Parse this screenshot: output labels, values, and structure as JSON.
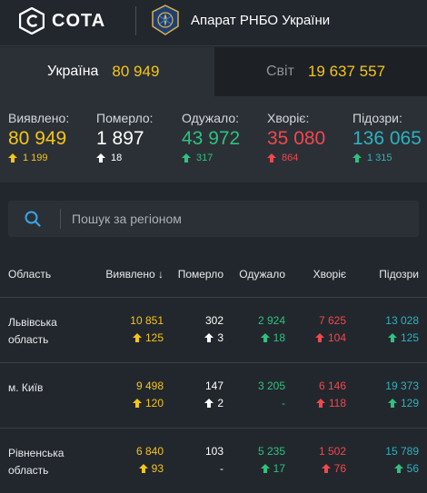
{
  "header": {
    "logo_text": "COTA",
    "org_name": "Апарат РНБО України"
  },
  "tabs": {
    "ukraine_label": "Україна",
    "ukraine_value": "80 949",
    "world_label": "Світ",
    "world_value": "19 637 557"
  },
  "stats": {
    "detected_label": "Виявлено:",
    "detected_value": "80 949",
    "detected_delta": "1 199",
    "died_label": "Померло:",
    "died_value": "1 897",
    "died_delta": "18",
    "recovered_label": "Одужало:",
    "recovered_value": "43 972",
    "recovered_delta": "317",
    "sick_label": "Хворіє:",
    "sick_value": "35 080",
    "sick_delta": "864",
    "suspected_label": "Підозри:",
    "suspected_value": "136 065",
    "suspected_delta": "1 315"
  },
  "search": {
    "placeholder": "Пошук за регіоном"
  },
  "table": {
    "headers": {
      "region": "Область",
      "detected": "Виявлено",
      "sort_arrow": "↓",
      "died": "Померло",
      "recovered": "Одужало",
      "sick": "Хворіє",
      "suspected": "Підозри"
    },
    "rows": [
      {
        "region_line1": "Львівська",
        "region_line2": "область",
        "detected": "10 851",
        "detected_delta": "125",
        "died": "302",
        "died_delta": "3",
        "recovered": "2 924",
        "recovered_delta": "18",
        "sick": "7 625",
        "sick_delta": "104",
        "suspected": "13 028",
        "suspected_delta": "125"
      },
      {
        "region_line1": "м. Київ",
        "region_line2": "",
        "detected": "9 498",
        "detected_delta": "120",
        "died": "147",
        "died_delta": "2",
        "recovered": "3 205",
        "recovered_delta": "-",
        "sick": "6 146",
        "sick_delta": "118",
        "suspected": "19 373",
        "suspected_delta": "129"
      },
      {
        "region_line1": "Рівненська",
        "region_line2": "область",
        "detected": "6 840",
        "detected_delta": "93",
        "died": "103",
        "died_delta": "-",
        "recovered": "5 235",
        "recovered_delta": "17",
        "sick": "1 502",
        "sick_delta": "76",
        "suspected": "15 789",
        "suspected_delta": "56"
      }
    ]
  },
  "colors": {
    "yellow": "#f5c518",
    "white": "#ffffff",
    "green": "#2ec27e",
    "red": "#f0484e",
    "teal": "#2bb3c0",
    "bg": "#22272d",
    "panel": "#2b3036"
  }
}
